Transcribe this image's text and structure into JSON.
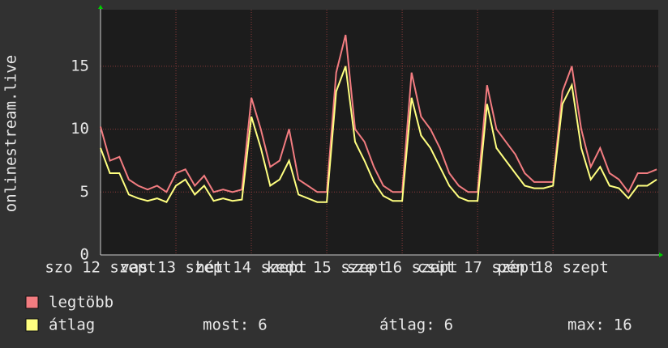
{
  "chart_data": {
    "type": "line",
    "y_label": "onlinestream.live",
    "x": [
      0,
      3,
      6,
      9,
      12,
      15,
      18,
      21,
      24,
      27,
      30,
      33,
      36,
      39,
      42,
      45,
      48,
      51,
      54,
      57,
      60,
      63,
      66,
      69,
      72,
      75,
      78,
      81,
      84,
      87,
      90,
      93,
      96,
      99,
      102,
      105,
      108,
      111,
      114,
      117,
      120,
      123,
      126,
      129,
      132,
      135,
      138,
      141,
      144,
      147,
      150,
      153,
      156,
      159,
      162,
      165,
      168,
      171,
      174,
      177
    ],
    "xlim": [
      0,
      177.5
    ],
    "xticks": [
      {
        "value": 0,
        "label": "szo 12 szept"
      },
      {
        "value": 24,
        "label": "vas 13 szept"
      },
      {
        "value": 48,
        "label": "hét 14 szept"
      },
      {
        "value": 72,
        "label": "kedd 15 szept"
      },
      {
        "value": 96,
        "label": "sze 16 szept"
      },
      {
        "value": 120,
        "label": "csüt 17 szept"
      },
      {
        "value": 144,
        "label": "pén 18 szept"
      }
    ],
    "ylim": [
      0,
      19.5
    ],
    "yticks": [
      0,
      5,
      10,
      15
    ],
    "grid": true,
    "series": [
      {
        "name": "legtöbb",
        "color": "#f27c80",
        "values": [
          10.2,
          7.5,
          7.8,
          6,
          5.5,
          5.2,
          5.5,
          5,
          6.5,
          6.8,
          5.5,
          6.3,
          5,
          5.2,
          5,
          5.2,
          12.5,
          10,
          7,
          7.5,
          10,
          6,
          5.5,
          5,
          5,
          14.5,
          17.5,
          10,
          9,
          7,
          5.5,
          5,
          5,
          14.5,
          11,
          10,
          8.5,
          6.5,
          5.5,
          5,
          5,
          13.5,
          10,
          9,
          8,
          6.5,
          5.8,
          5.8,
          5.8,
          13,
          15,
          10,
          7,
          8.5,
          6.5,
          6,
          5,
          6.5,
          6.5,
          6.8
        ]
      },
      {
        "name": "átlag",
        "color": "#ffff80",
        "values": [
          8.5,
          6.5,
          6.5,
          4.8,
          4.5,
          4.3,
          4.5,
          4.2,
          5.5,
          6,
          4.8,
          5.5,
          4.3,
          4.5,
          4.3,
          4.4,
          11,
          8.5,
          5.5,
          6,
          7.5,
          4.8,
          4.5,
          4.2,
          4.2,
          13,
          15,
          9,
          7.5,
          5.8,
          4.7,
          4.3,
          4.3,
          12.5,
          9.5,
          8.5,
          7,
          5.5,
          4.6,
          4.3,
          4.3,
          12,
          8.5,
          7.5,
          6.5,
          5.5,
          5.3,
          5.3,
          5.5,
          12,
          13.5,
          8.5,
          6,
          7,
          5.5,
          5.3,
          4.5,
          5.5,
          5.5,
          6
        ]
      }
    ],
    "stats": [
      {
        "label": "most:",
        "value": 6
      },
      {
        "label": "átlag:",
        "value": 6
      },
      {
        "label": "max:",
        "value": 16
      }
    ]
  }
}
